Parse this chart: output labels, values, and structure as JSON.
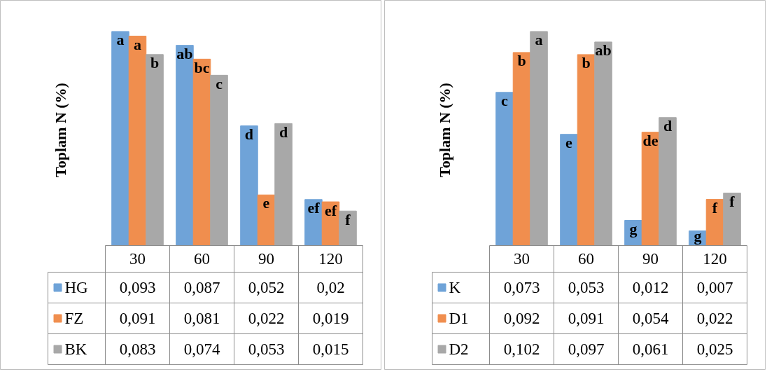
{
  "chart_data": [
    {
      "type": "bar",
      "ylabel": "Toplam N (%)",
      "categories": [
        "30",
        "60",
        "90",
        "120"
      ],
      "series": [
        {
          "name": "HG",
          "color": "#6fa3d8",
          "values": [
            0.093,
            0.087,
            0.052,
            0.02
          ],
          "value_labels": [
            "0,093",
            "0,087",
            "0,052",
            "0,02"
          ]
        },
        {
          "name": "FZ",
          "color": "#f08e4e",
          "values": [
            0.091,
            0.081,
            0.022,
            0.019
          ],
          "value_labels": [
            "0,091",
            "0,081",
            "0,022",
            "0,019"
          ]
        },
        {
          "name": "BK",
          "color": "#a8a8a8",
          "values": [
            0.083,
            0.074,
            0.053,
            0.015
          ],
          "value_labels": [
            "0,083",
            "0,074",
            "0,053",
            "0,015"
          ]
        }
      ],
      "legend": "bottom",
      "grid": false,
      "annotations": [
        "a",
        "a",
        "b",
        "ab",
        "bc",
        "c",
        "d",
        "e",
        "d",
        "ef",
        "ef",
        "f"
      ]
    },
    {
      "type": "bar",
      "ylabel": "Toplam N (%)",
      "categories": [
        "30",
        "60",
        "90",
        "120"
      ],
      "series": [
        {
          "name": "K",
          "color": "#6fa3d8",
          "values": [
            0.073,
            0.053,
            0.012,
            0.007
          ],
          "value_labels": [
            "0,073",
            "0,053",
            "0,012",
            "0,007"
          ]
        },
        {
          "name": "D1",
          "color": "#f08e4e",
          "values": [
            0.092,
            0.091,
            0.054,
            0.022
          ],
          "value_labels": [
            "0,092",
            "0,091",
            "0,054",
            "0,022"
          ]
        },
        {
          "name": "D2",
          "color": "#a8a8a8",
          "values": [
            0.102,
            0.097,
            0.061,
            0.025
          ],
          "value_labels": [
            "0,102",
            "0,097",
            "0,061",
            "0,025"
          ]
        }
      ],
      "legend": "bottom",
      "grid": false,
      "annotations": [
        "c",
        "b",
        "a",
        "e",
        "b",
        "ab",
        "g",
        "de",
        "d",
        "g",
        "f",
        "f"
      ]
    }
  ]
}
